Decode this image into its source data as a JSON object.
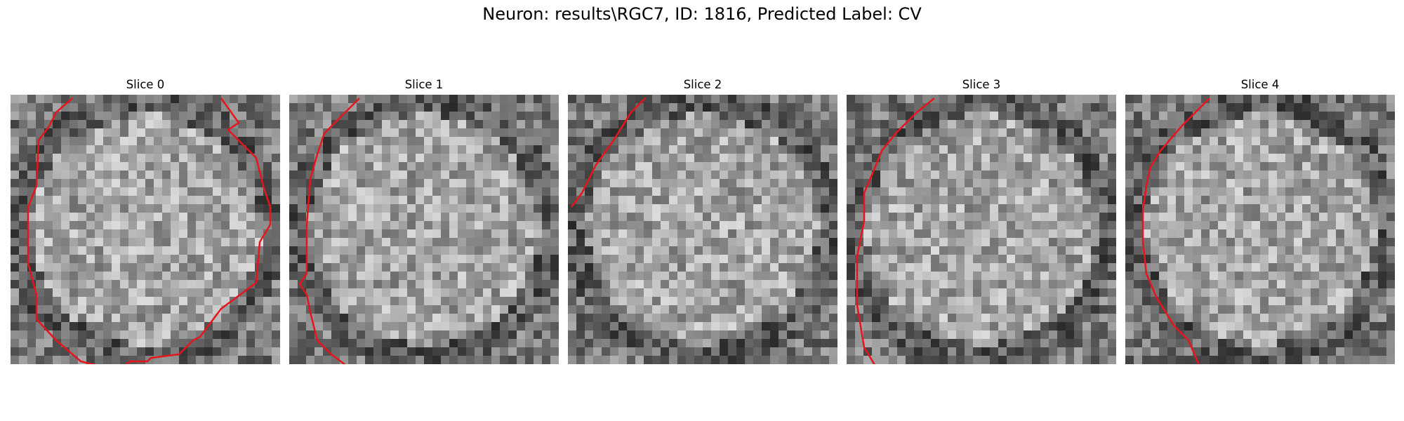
{
  "figure": {
    "title": "Neuron: results\\RGC7, ID: 1816, Predicted Label: CV"
  },
  "panels": [
    {
      "title": "Slice 0"
    },
    {
      "title": "Slice 1"
    },
    {
      "title": "Slice 2"
    },
    {
      "title": "Slice 3"
    },
    {
      "title": "Slice 4"
    }
  ],
  "colors": {
    "contour": "#e8141c",
    "background": "#ffffff"
  }
}
